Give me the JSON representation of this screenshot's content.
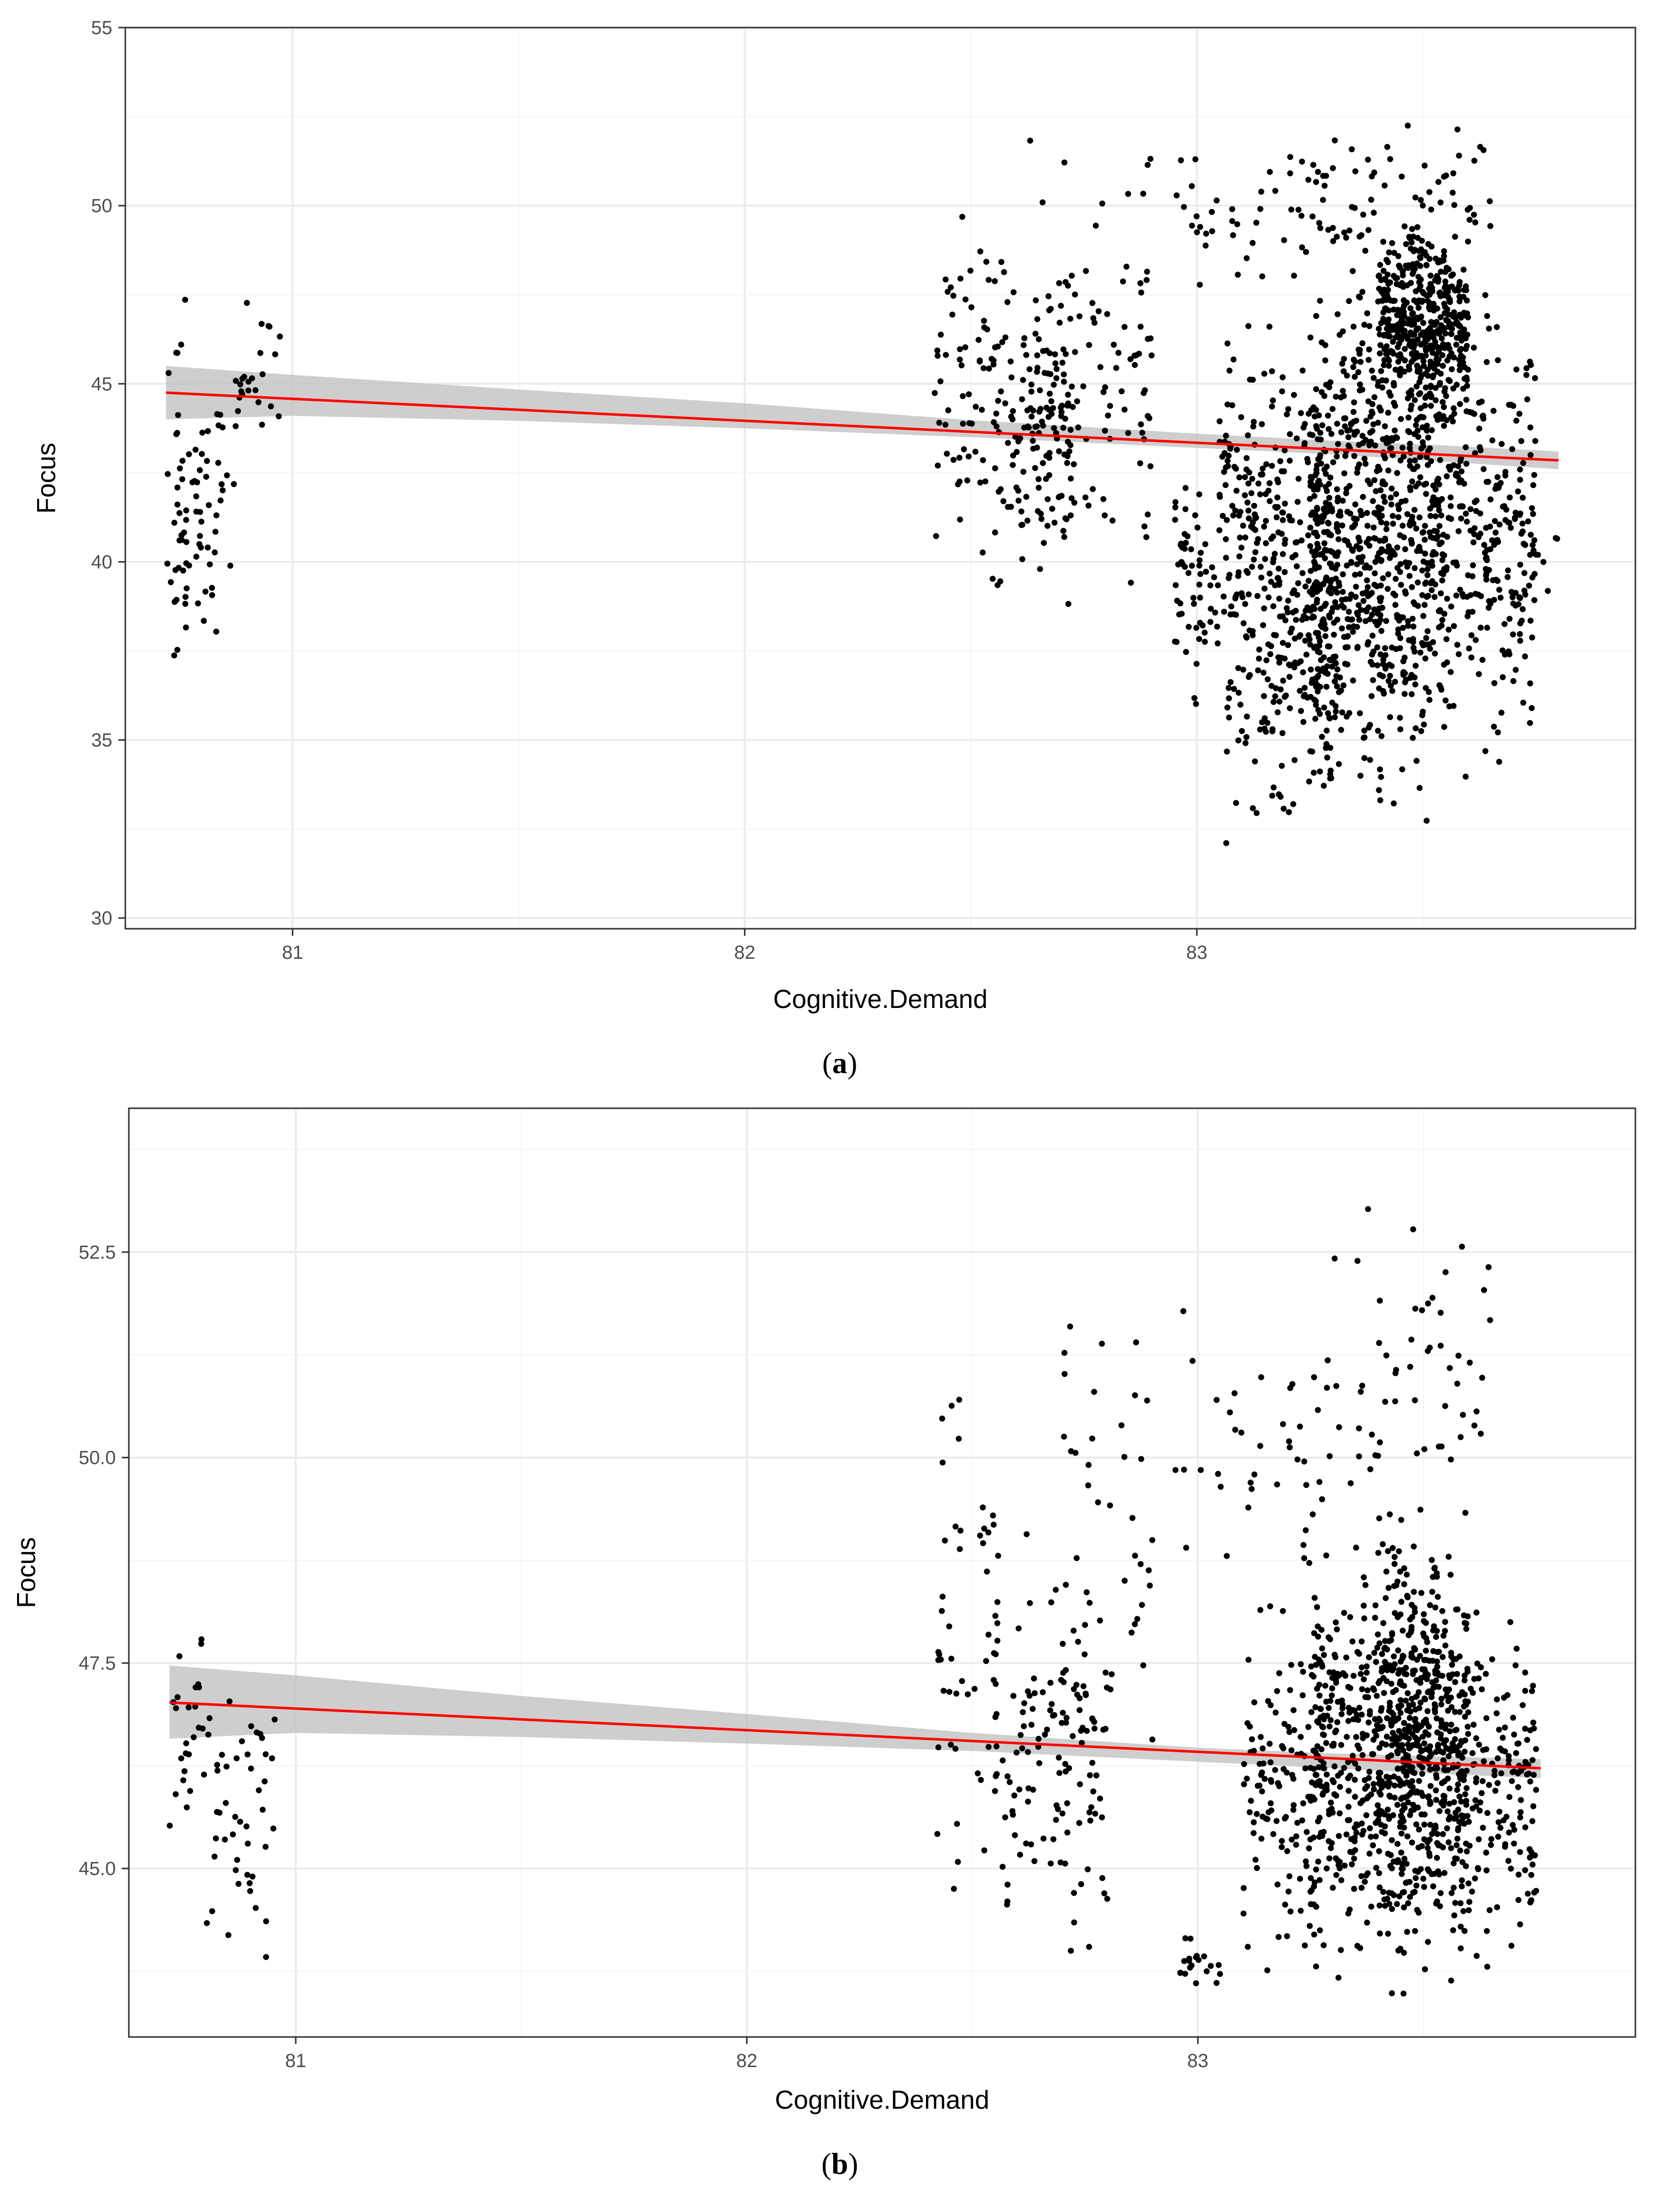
{
  "chart_data": [
    {
      "type": "scatter",
      "caption_letter": "a",
      "xlabel": "Cognitive.Demand",
      "ylabel": "Focus",
      "xlim": [
        80.63,
        83.97
      ],
      "ylim": [
        29.7,
        55.0
      ],
      "x_ticks": [
        81,
        82,
        83
      ],
      "x_tick_labels": [
        "81",
        "82",
        "83"
      ],
      "y_ticks": [
        30,
        35,
        40,
        45,
        50,
        55
      ],
      "y_tick_labels": [
        "30",
        "35",
        "40",
        "45",
        "50",
        "55"
      ],
      "grid": true,
      "fit_line": {
        "x": [
          80.72,
          83.8
        ],
        "y": [
          44.75,
          42.85
        ],
        "color": "#ff0000"
      },
      "confidence_band": {
        "x": [
          80.72,
          81.0,
          81.5,
          82.0,
          82.5,
          83.0,
          83.3,
          83.5,
          83.8
        ],
        "lower": [
          44.0,
          44.1,
          43.96,
          43.75,
          43.5,
          43.2,
          43.02,
          42.85,
          42.6
        ],
        "upper": [
          45.5,
          45.25,
          44.84,
          44.45,
          43.98,
          43.6,
          43.4,
          43.3,
          43.1
        ],
        "color": "#bdbdbd"
      },
      "clusters": [
        {
          "x": [
            80.72,
            80.78
          ],
          "y": [
            34.5,
            48.6
          ],
          "n": 40,
          "seed": 11
        },
        {
          "x": [
            80.78,
            80.88
          ],
          "y": [
            36.0,
            48.0
          ],
          "n": 40,
          "seed": 12
        },
        {
          "x": [
            80.87,
            80.98
          ],
          "y": [
            43.1,
            47.8
          ],
          "n": 25,
          "seed": 13
        },
        {
          "x": [
            82.42,
            82.56
          ],
          "y": [
            37.9,
            51.8
          ],
          "n": 60,
          "seed": 14
        },
        {
          "x": [
            82.55,
            82.73
          ],
          "y": [
            38.0,
            49.3
          ],
          "n": 120,
          "seed": 15
        },
        {
          "x": [
            82.62,
            82.9
          ],
          "y": [
            36.7,
            53.0
          ],
          "n": 120,
          "seed": 16
        },
        {
          "x": [
            82.95,
            83.05
          ],
          "y": [
            35.0,
            44.3
          ],
          "n": 60,
          "seed": 17
        },
        {
          "x": [
            82.95,
            83.3
          ],
          "y": [
            47.0,
            52.6
          ],
          "n": 50,
          "seed": 18
        },
        {
          "x": [
            83.05,
            83.3
          ],
          "y": [
            31.0,
            48.8
          ],
          "n": 400,
          "seed": 19
        },
        {
          "x": [
            83.25,
            83.55
          ],
          "y": [
            31.8,
            49.5
          ],
          "n": 800,
          "seed": 20
        },
        {
          "x": [
            83.4,
            83.6
          ],
          "y": [
            43.5,
            49.8
          ],
          "n": 450,
          "seed": 21
        },
        {
          "x": [
            83.3,
            83.65
          ],
          "y": [
            46.0,
            53.9
          ],
          "n": 80,
          "seed": 22
        },
        {
          "x": [
            83.55,
            83.75
          ],
          "y": [
            33.0,
            48.5
          ],
          "n": 250,
          "seed": 23
        },
        {
          "x": [
            83.75,
            83.8
          ],
          "y": [
            37.8,
            42.7
          ],
          "n": 5,
          "seed": 24
        }
      ]
    },
    {
      "type": "scatter",
      "caption_letter": "b",
      "xlabel": "Cognitive.Demand",
      "ylabel": "Focus",
      "xlim": [
        80.63,
        83.97
      ],
      "ylim": [
        42.95,
        54.25
      ],
      "x_ticks": [
        81,
        82,
        83
      ],
      "x_tick_labels": [
        "81",
        "82",
        "83"
      ],
      "y_ticks": [
        45.0,
        47.5,
        50.0,
        52.5
      ],
      "y_tick_labels": [
        "45.0",
        "47.5",
        "50.0",
        "52.5"
      ],
      "grid": true,
      "fit_line": {
        "x": [
          80.72,
          83.76
        ],
        "y": [
          47.02,
          46.22
        ],
        "color": "#ff0000"
      },
      "confidence_band": {
        "x": [
          80.72,
          81.0,
          81.5,
          82.0,
          82.5,
          83.0,
          83.3,
          83.5,
          83.76
        ],
        "lower": [
          46.58,
          46.65,
          46.6,
          46.52,
          46.43,
          46.3,
          46.22,
          46.16,
          46.1
        ],
        "upper": [
          47.47,
          47.35,
          47.1,
          46.88,
          46.65,
          46.47,
          46.4,
          46.37,
          46.33
        ],
        "color": "#bdbdbd"
      },
      "clusters": [
        {
          "x": [
            80.72,
            80.8
          ],
          "y": [
            44.2,
            48.6
          ],
          "n": 25,
          "seed": 31
        },
        {
          "x": [
            80.8,
            80.92
          ],
          "y": [
            43.5,
            47.8
          ],
          "n": 35,
          "seed": 32
        },
        {
          "x": [
            80.9,
            80.96
          ],
          "y": [
            43.2,
            47.7
          ],
          "n": 12,
          "seed": 33
        },
        {
          "x": [
            82.42,
            82.56
          ],
          "y": [
            43.6,
            51.8
          ],
          "n": 50,
          "seed": 34
        },
        {
          "x": [
            82.55,
            82.8
          ],
          "y": [
            43.6,
            49.3
          ],
          "n": 130,
          "seed": 35
        },
        {
          "x": [
            82.7,
            82.9
          ],
          "y": [
            45.0,
            53.0
          ],
          "n": 40,
          "seed": 36
        },
        {
          "x": [
            82.95,
            83.05
          ],
          "y": [
            43.3,
            44.3
          ],
          "n": 20,
          "seed": 37
        },
        {
          "x": [
            82.95,
            83.3
          ],
          "y": [
            47.0,
            52.6
          ],
          "n": 45,
          "seed": 38
        },
        {
          "x": [
            83.1,
            83.3
          ],
          "y": [
            43.2,
            48.8
          ],
          "n": 150,
          "seed": 39
        },
        {
          "x": [
            83.25,
            83.55
          ],
          "y": [
            43.2,
            49.5
          ],
          "n": 500,
          "seed": 40
        },
        {
          "x": [
            83.4,
            83.6
          ],
          "y": [
            43.2,
            49.8
          ],
          "n": 350,
          "seed": 41
        },
        {
          "x": [
            83.3,
            83.65
          ],
          "y": [
            48.0,
            53.9
          ],
          "n": 60,
          "seed": 42
        },
        {
          "x": [
            83.55,
            83.75
          ],
          "y": [
            43.2,
            48.5
          ],
          "n": 200,
          "seed": 43
        }
      ]
    }
  ]
}
